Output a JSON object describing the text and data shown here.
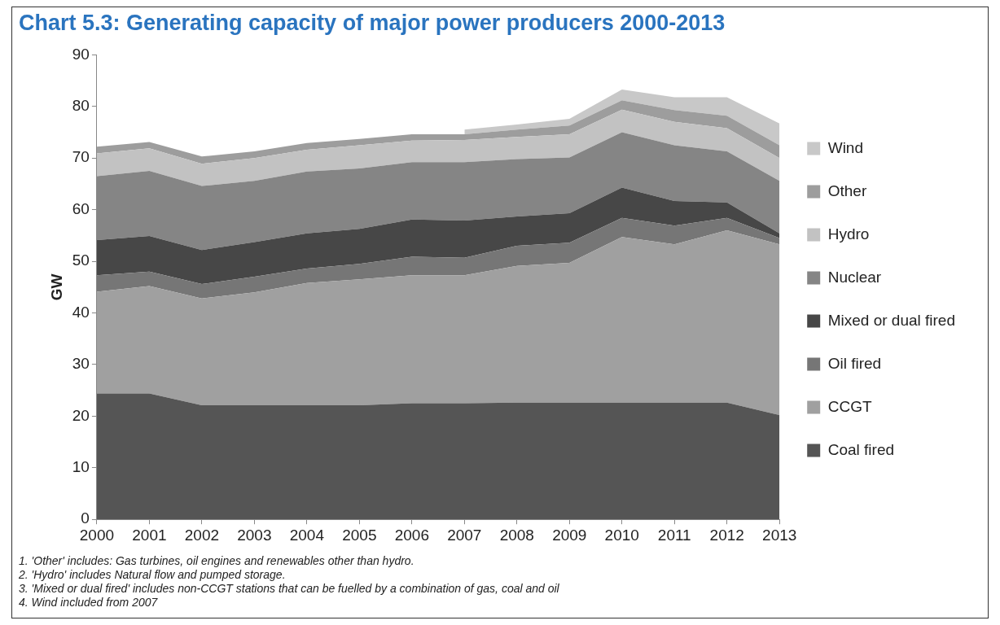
{
  "chart_data": {
    "type": "area",
    "title": "Chart 5.3: Generating capacity of major power producers 2000-2013",
    "ylabel": "GW",
    "categories": [
      "2000",
      "2001",
      "2002",
      "2003",
      "2004",
      "2005",
      "2006",
      "2007",
      "2008",
      "2009",
      "2010",
      "2011",
      "2012",
      "2013"
    ],
    "stacked": true,
    "ylim": [
      0,
      90
    ],
    "yticks": [
      0,
      10,
      20,
      30,
      40,
      50,
      60,
      70,
      80,
      90
    ],
    "grid": false,
    "legend": "right",
    "series": [
      {
        "name": "Coal fired",
        "color": "#555555",
        "values": [
          24.4,
          24.4,
          22.1,
          22.1,
          22.1,
          22.1,
          22.5,
          22.5,
          22.6,
          22.6,
          22.6,
          22.6,
          22.6,
          20.2
        ]
      },
      {
        "name": "CCGT",
        "color": "#a0a0a0",
        "values": [
          19.7,
          20.8,
          20.7,
          21.9,
          23.7,
          24.4,
          24.8,
          24.8,
          26.5,
          27.1,
          32.1,
          30.7,
          33.4,
          33.1
        ]
      },
      {
        "name": "Oil fired",
        "color": "#767676",
        "values": [
          3.2,
          2.8,
          2.8,
          3.0,
          2.8,
          3.0,
          3.6,
          3.4,
          3.9,
          3.9,
          3.7,
          3.6,
          2.4,
          1.2
        ]
      },
      {
        "name": "Mixed or dual fired",
        "color": "#474747",
        "values": [
          6.8,
          6.9,
          6.6,
          6.7,
          6.8,
          6.8,
          7.2,
          7.2,
          5.7,
          5.7,
          5.9,
          4.8,
          3.0,
          0.9
        ]
      },
      {
        "name": "Nuclear",
        "color": "#858585",
        "values": [
          12.4,
          12.6,
          12.4,
          11.9,
          12.0,
          11.7,
          11.1,
          11.3,
          11.1,
          10.8,
          10.7,
          10.8,
          9.9,
          10.2
        ]
      },
      {
        "name": "Hydro",
        "color": "#c2c2c2",
        "values": [
          4.4,
          4.4,
          4.3,
          4.4,
          4.2,
          4.5,
          4.2,
          4.3,
          4.3,
          4.5,
          4.4,
          4.5,
          4.5,
          4.4
        ]
      },
      {
        "name": "Other",
        "color": "#9d9d9d",
        "values": [
          1.3,
          1.2,
          1.4,
          1.3,
          1.3,
          1.2,
          1.2,
          1.1,
          1.4,
          1.7,
          1.8,
          2.3,
          2.4,
          2.5
        ]
      },
      {
        "name": "Wind",
        "color": "#c8c8c8",
        "values": [
          null,
          null,
          null,
          null,
          null,
          null,
          null,
          0.9,
          1.0,
          1.3,
          2.1,
          2.5,
          3.6,
          4.2
        ]
      }
    ],
    "annotations": [
      "1. 'Other' includes: Gas turbines, oil engines and renewables other than hydro.",
      "2. 'Hydro' includes Natural flow and pumped storage.",
      "3. 'Mixed or dual fired' includes non-CCGT stations that can be fuelled by a combination of gas, coal and oil",
      "4. Wind included from 2007"
    ]
  }
}
